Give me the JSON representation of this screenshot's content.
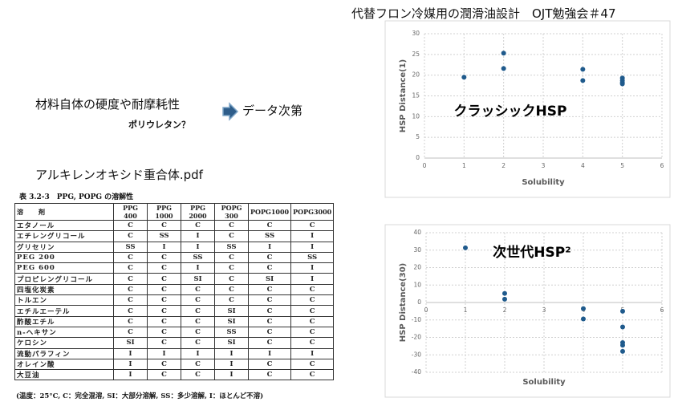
{
  "header": {
    "title": "代替フロン冷媒用の潤滑油設計　OJT勉強会＃47"
  },
  "notes": {
    "property": "材料自体の硬度や耐摩耗性",
    "candidate": "ポリウレタン？",
    "result": "データ次第",
    "file": "アルキレンオキシド重合体.pdf"
  },
  "table": {
    "caption": "表 3.2-3　PPG, POPG の溶解性",
    "header": [
      "溶　　剤",
      "PPG 400",
      "PPG 1000",
      "PPG 2000",
      "POPG 300",
      "POPG1000",
      "POPG3000"
    ],
    "rows": [
      [
        "エタノール",
        "C",
        "C",
        "C",
        "C",
        "C",
        "C"
      ],
      [
        "エチレングリコール",
        "C",
        "SS",
        "I",
        "C",
        "SS",
        "I"
      ],
      [
        "グリセリン",
        "SS",
        "I",
        "I",
        "SS",
        "I",
        "I"
      ],
      [
        "PEG 200",
        "C",
        "C",
        "SS",
        "C",
        "C",
        "SS"
      ],
      [
        "PEG 600",
        "C",
        "C",
        "I",
        "C",
        "C",
        "I"
      ],
      [
        "プロピレングリコール",
        "C",
        "C",
        "SI",
        "C",
        "SI",
        "I"
      ],
      [
        "四塩化炭素",
        "C",
        "C",
        "C",
        "C",
        "C",
        "C"
      ],
      [
        "トルエン",
        "C",
        "C",
        "C",
        "C",
        "C",
        "C"
      ],
      [
        "エチルエーテル",
        "C",
        "C",
        "C",
        "SI",
        "C",
        "C"
      ],
      [
        "酢酸エチル",
        "C",
        "C",
        "C",
        "SI",
        "C",
        "C"
      ],
      [
        "n-ヘキサン",
        "C",
        "C",
        "C",
        "SS",
        "C",
        "C"
      ],
      [
        "ケロシン",
        "SI",
        "C",
        "C",
        "SI",
        "C",
        "C"
      ],
      [
        "流動パラフィン",
        "I",
        "I",
        "I",
        "I",
        "I",
        "I"
      ],
      [
        "オレイン酸",
        "I",
        "C",
        "C",
        "I",
        "C",
        "C"
      ],
      [
        "大豆油",
        "I",
        "C",
        "C",
        "I",
        "C",
        "C"
      ]
    ],
    "footnote": "(温度：25°C, C：完全混溶, SI：大部分溶解, SS：多少溶解, I：ほとんど不溶)"
  },
  "chart_data": [
    {
      "type": "scatter",
      "annotation": "クラッシックHSP",
      "xlabel": "Solubility",
      "ylabel": "HSP Distance(1)",
      "color": "#1f5a8c",
      "grid": true,
      "x": [
        1,
        2,
        2,
        4,
        4,
        5,
        5,
        5,
        5
      ],
      "values": [
        19.5,
        25.3,
        21.6,
        21.4,
        18.7,
        19.3,
        18.7,
        18.2,
        17.9
      ],
      "xlim": [
        0,
        6
      ],
      "xticks": [
        0,
        1,
        2,
        3,
        4,
        5,
        6
      ],
      "ylim": [
        0,
        30
      ],
      "yticks": [
        0,
        5,
        10,
        15,
        20,
        25,
        30
      ]
    },
    {
      "type": "scatter",
      "annotation": "次世代HSP²",
      "xlabel": "Solubility",
      "ylabel": "HSP Distance(30)",
      "color": "#1f5a8c",
      "grid": true,
      "x": [
        1,
        2,
        2,
        4,
        4,
        5,
        5,
        5,
        5,
        5
      ],
      "values": [
        31.3,
        5.2,
        1.9,
        -3.5,
        -9.4,
        -5,
        -14,
        -23,
        -24.5,
        -28
      ],
      "xlim": [
        0,
        6
      ],
      "xticks": [
        0,
        1,
        2,
        3,
        4,
        5,
        6
      ],
      "ylim": [
        -40,
        40
      ],
      "yticks": [
        -40,
        -30,
        -20,
        -10,
        0,
        10,
        20,
        30,
        40
      ]
    }
  ]
}
